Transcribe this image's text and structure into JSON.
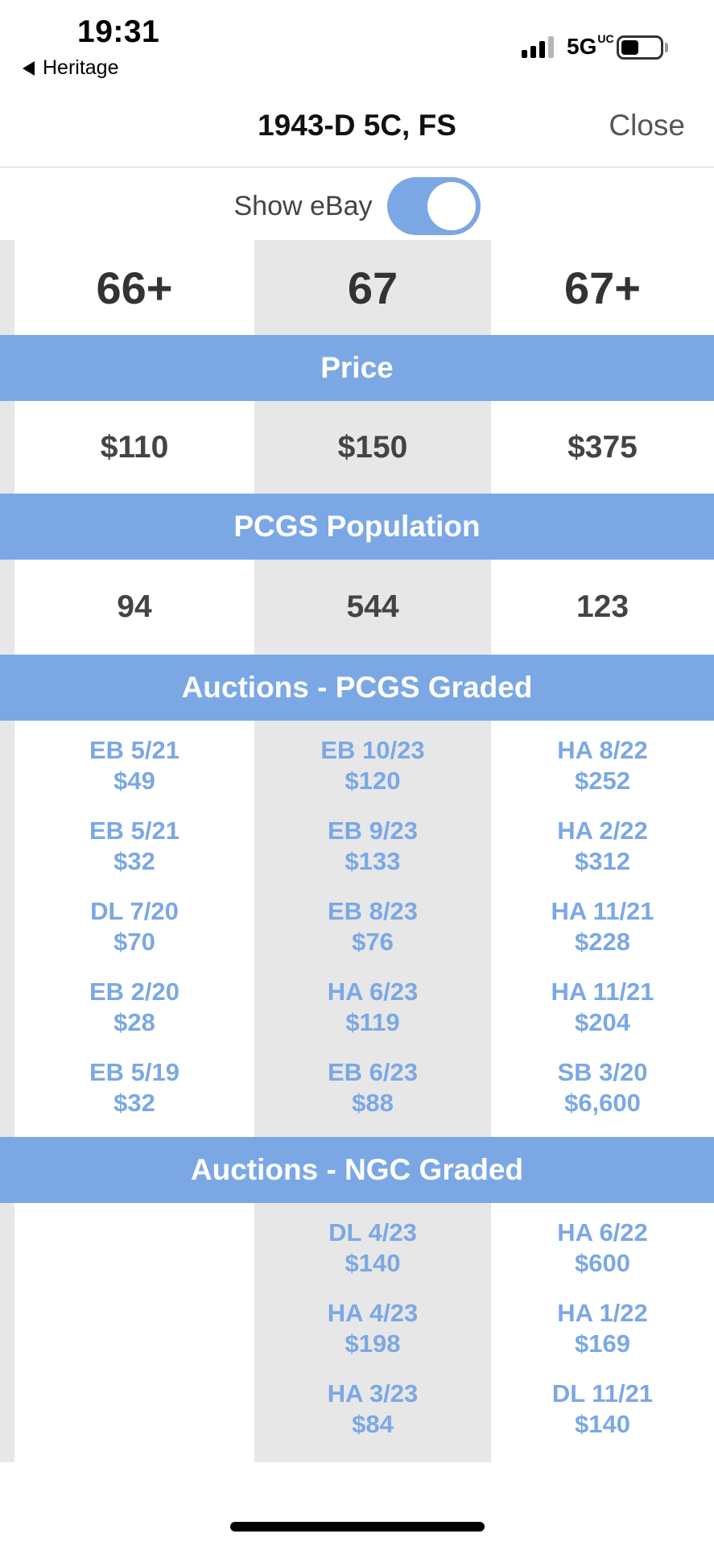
{
  "status_bar": {
    "time": "19:31",
    "back_app": "Heritage",
    "network": "5G",
    "network_suffix": "UC",
    "battery_percent": 45
  },
  "nav": {
    "title": "1943-D 5C, FS",
    "close_label": "Close"
  },
  "toggle": {
    "label": "Show eBay",
    "on": true
  },
  "grades": [
    "66+",
    "67",
    "67+"
  ],
  "sections": {
    "price": "Price",
    "population": "PCGS Population",
    "auctions_pcgs": "Auctions - PCGS Graded",
    "auctions_ngc": "Auctions - NGC Graded"
  },
  "prices": [
    "$110",
    "$150",
    "$375"
  ],
  "population": [
    "94",
    "544",
    "123"
  ],
  "auctions_pcgs": [
    [
      {
        "label": "EB 5/21",
        "price": "$49"
      },
      {
        "label": "EB 5/21",
        "price": "$32"
      },
      {
        "label": "DL 7/20",
        "price": "$70"
      },
      {
        "label": "EB 2/20",
        "price": "$28"
      },
      {
        "label": "EB 5/19",
        "price": "$32"
      }
    ],
    [
      {
        "label": "EB 10/23",
        "price": "$120"
      },
      {
        "label": "EB 9/23",
        "price": "$133"
      },
      {
        "label": "EB 8/23",
        "price": "$76"
      },
      {
        "label": "HA 6/23",
        "price": "$119"
      },
      {
        "label": "EB 6/23",
        "price": "$88"
      }
    ],
    [
      {
        "label": "HA 8/22",
        "price": "$252"
      },
      {
        "label": "HA 2/22",
        "price": "$312"
      },
      {
        "label": "HA 11/21",
        "price": "$228"
      },
      {
        "label": "HA 11/21",
        "price": "$204"
      },
      {
        "label": "SB 3/20",
        "price": "$6,600"
      }
    ]
  ],
  "auctions_ngc": [
    [],
    [
      {
        "label": "DL 4/23",
        "price": "$140"
      },
      {
        "label": "HA 4/23",
        "price": "$198"
      },
      {
        "label": "HA 3/23",
        "price": "$84"
      }
    ],
    [
      {
        "label": "HA 6/22",
        "price": "$600"
      },
      {
        "label": "HA 1/22",
        "price": "$169"
      },
      {
        "label": "DL 11/21",
        "price": "$140"
      }
    ]
  ],
  "colors": {
    "accent": "#7ba8e5",
    "stripe": "#e7e7e7"
  }
}
